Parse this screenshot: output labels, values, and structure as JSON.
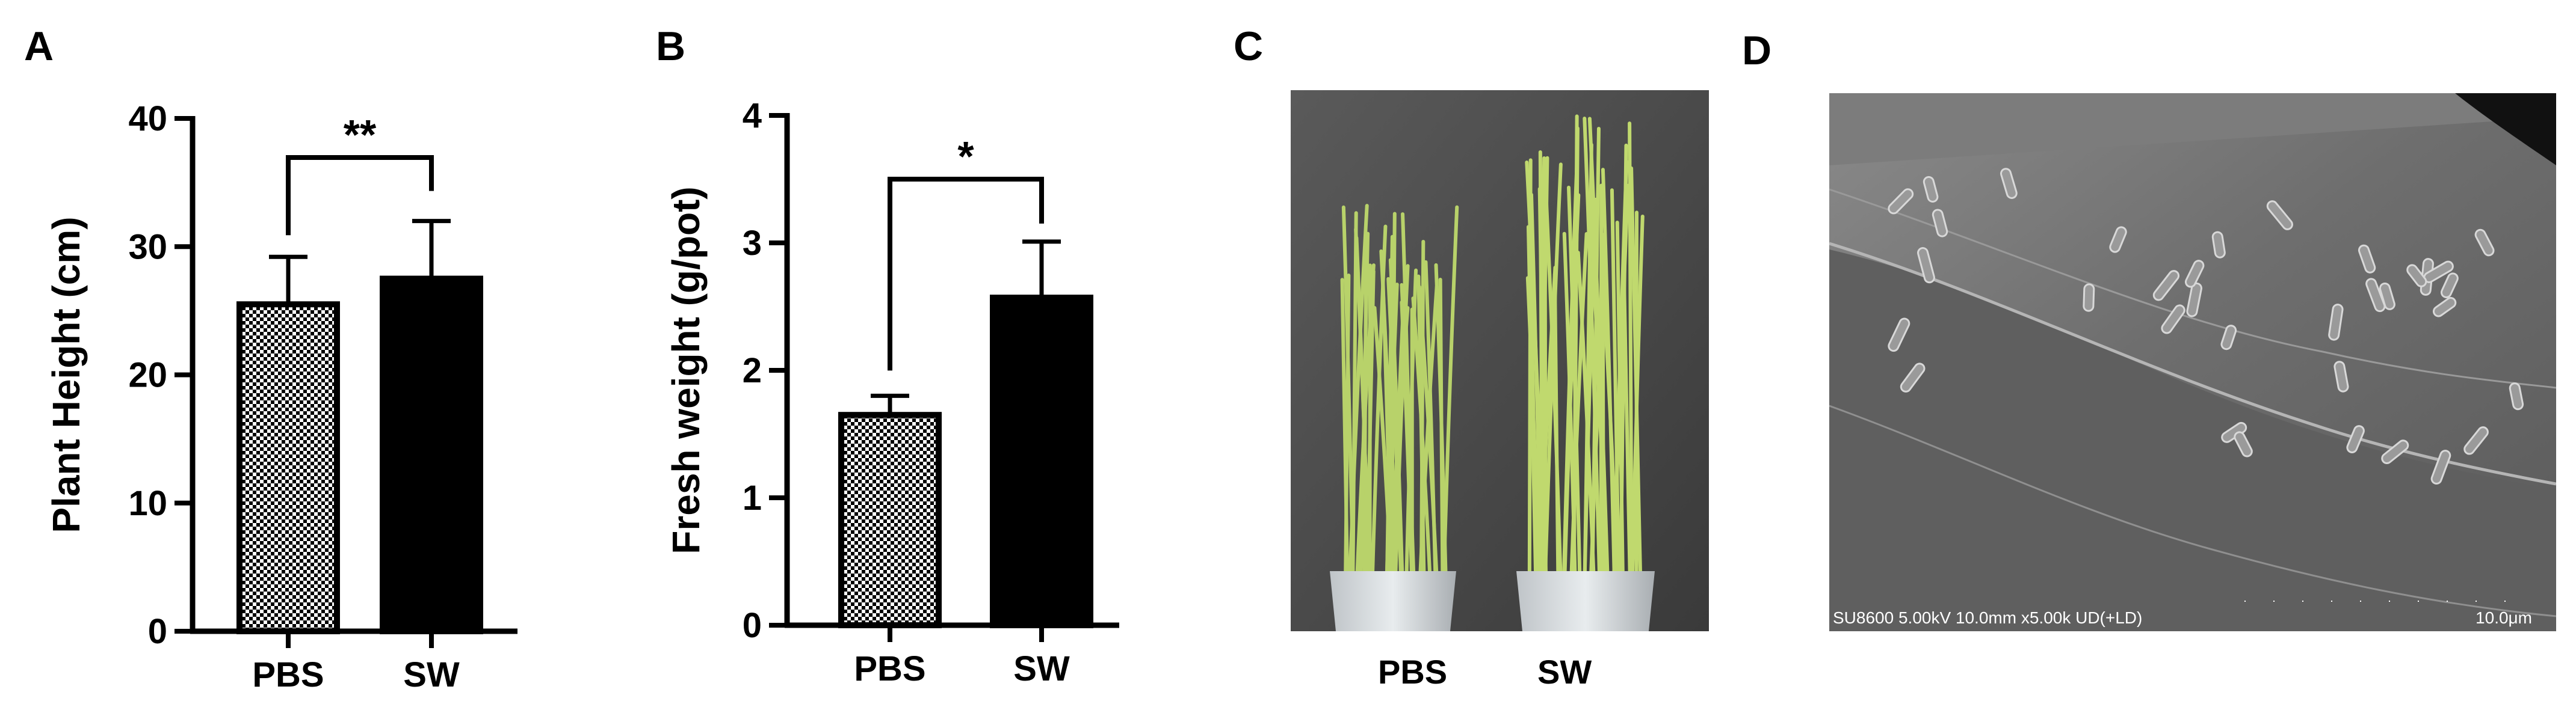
{
  "panels": {
    "a": {
      "label": "A"
    },
    "b": {
      "label": "B"
    },
    "c": {
      "label": "C",
      "categories": [
        "PBS",
        "SW"
      ]
    },
    "d": {
      "label": "D",
      "caption": "SU8600 5.00kV 10.0mm x5.00k UD(+LD)",
      "scale": "10.0μm"
    }
  },
  "chart_data": [
    {
      "type": "bar",
      "panel": "A",
      "categories": [
        "PBS",
        "SW"
      ],
      "values": [
        25.5,
        27.5
      ],
      "errors": [
        3.7,
        4.5
      ],
      "ylabel": "Plant Height (cm)",
      "xlabel": "",
      "ylim": [
        0,
        40
      ],
      "yticks": [
        "0",
        "10",
        "20",
        "30",
        "40"
      ],
      "significance": "**",
      "fills": [
        "checker",
        "#000000"
      ]
    },
    {
      "type": "bar",
      "panel": "B",
      "categories": [
        "PBS",
        "SW"
      ],
      "values": [
        1.65,
        2.57
      ],
      "errors": [
        0.15,
        0.44
      ],
      "ylabel": "Fresh weight (g/pot)",
      "xlabel": "",
      "ylim": [
        0,
        4
      ],
      "yticks": [
        "0",
        "1",
        "2",
        "3",
        "4"
      ],
      "significance": "*",
      "fills": [
        "checker",
        "#000000"
      ]
    }
  ]
}
